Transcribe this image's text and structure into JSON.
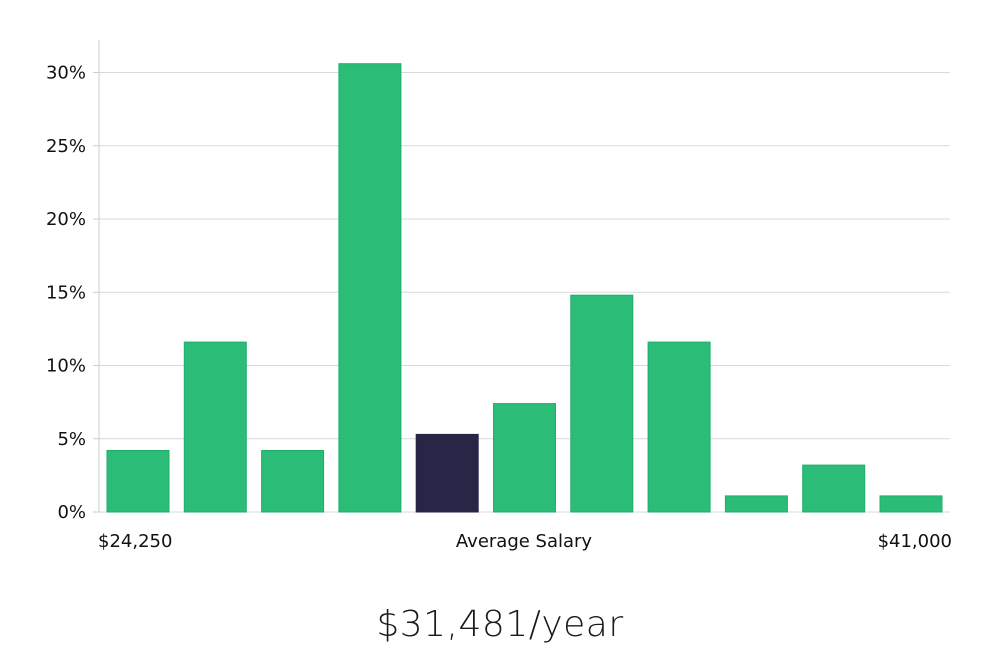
{
  "colors": {
    "bar": "#2bbd77",
    "bar_stroke": "#1fae68",
    "highlight": "#282546",
    "grid": "#d9d9d9",
    "axis": "#cccccc"
  },
  "chart_data": {
    "type": "bar",
    "title": "",
    "xlabel": "Average Salary",
    "ylabel": "",
    "x_min_label": "$24,250",
    "x_max_label": "$41,000",
    "ylim": [
      0,
      32
    ],
    "yticks": [
      0,
      5,
      10,
      15,
      20,
      25,
      30
    ],
    "ytick_labels": [
      "0%",
      "5%",
      "10%",
      "15%",
      "20%",
      "25%",
      "30%"
    ],
    "values": [
      4.2,
      11.6,
      4.2,
      30.6,
      5.3,
      7.4,
      14.8,
      11.6,
      1.1,
      3.2,
      1.1
    ],
    "highlight_index": 4,
    "grid": true
  },
  "summary": {
    "average_salary": "$31,481/year"
  }
}
